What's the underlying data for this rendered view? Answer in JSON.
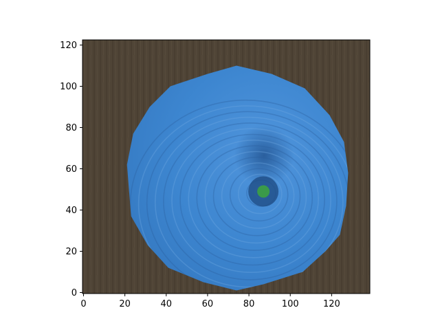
{
  "chart_data": {
    "type": "image",
    "title": "",
    "xlabel": "",
    "ylabel": "",
    "image_size": {
      "width": 139,
      "height": 123
    },
    "xlim": [
      -0.5,
      138.5
    ],
    "ylim": [
      122.5,
      -0.5
    ],
    "xticks": [
      0,
      20,
      40,
      60,
      80,
      100,
      120
    ],
    "yticks": [
      0,
      20,
      40,
      60,
      80,
      100,
      120
    ],
    "xtick_labels": [
      "0",
      "20",
      "40",
      "60",
      "80",
      "100",
      "120"
    ],
    "ytick_labels": [
      "0",
      "20",
      "40",
      "60",
      "80",
      "100",
      "120"
    ],
    "grid": false,
    "content": {
      "subject": "blue yarn ball viewed from above on dark brown wooden surface",
      "background_color": "#4f4436",
      "object_color": "#3d86d0",
      "object_highlight_color": "#6fa8e2",
      "object_shadow_color": "#2a5f9e",
      "center_color": "#1f4e86",
      "center_dot_color": "#3a9a4a",
      "outline": [
        [
          74,
          1
        ],
        [
          87,
          4
        ],
        [
          106,
          10
        ],
        [
          117,
          20
        ],
        [
          124,
          28
        ],
        [
          127,
          42
        ],
        [
          128,
          58
        ],
        [
          126,
          73
        ],
        [
          119,
          86
        ],
        [
          107,
          99
        ],
        [
          91,
          106
        ],
        [
          74,
          110
        ],
        [
          60,
          106
        ],
        [
          42,
          100
        ],
        [
          32,
          90
        ],
        [
          24,
          77
        ],
        [
          21,
          62
        ],
        [
          23,
          37
        ],
        [
          31,
          23
        ],
        [
          41,
          12
        ],
        [
          58,
          5
        ]
      ],
      "center": [
        87,
        49
      ],
      "center_dot_radius": 3
    }
  }
}
